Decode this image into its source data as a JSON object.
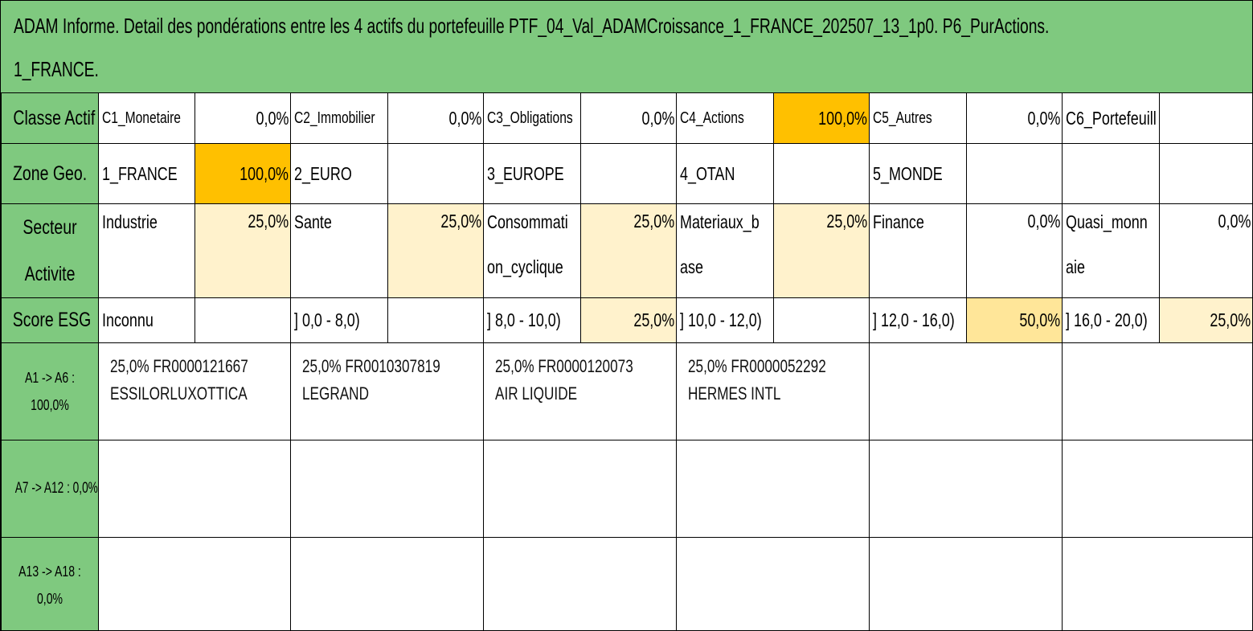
{
  "title": {
    "line1": "ADAM Informe. Detail des pondérations entre les 4 actifs du portefeuille PTF_04_Val_ADAMCroissance_1_FRANCE_202507_13_1p0. P6_PurActions.",
    "line2": "1_FRANCE."
  },
  "classe_actif": {
    "header": "Classe Actif",
    "items": [
      {
        "label": "C1_Monetaire",
        "value": "0,0%"
      },
      {
        "label": "C2_Immobilier",
        "value": "0,0%"
      },
      {
        "label": "C3_Obligations",
        "value": "0,0%"
      },
      {
        "label": "C4_Actions",
        "value": "100,0%"
      },
      {
        "label": "C5_Autres",
        "value": "0,0%"
      },
      {
        "label": "C6_Portefeuill",
        "value": ""
      }
    ]
  },
  "zone_geo": {
    "header": "Zone Geo.",
    "items": [
      {
        "label": "1_FRANCE",
        "value": "100,0%"
      },
      {
        "label": "2_EURO",
        "value": ""
      },
      {
        "label": "3_EUROPE",
        "value": ""
      },
      {
        "label": "4_OTAN",
        "value": ""
      },
      {
        "label": "5_MONDE",
        "value": ""
      },
      {
        "label": "",
        "value": ""
      }
    ]
  },
  "secteur": {
    "header_line1": "Secteur",
    "header_line2": "Activite",
    "items": [
      {
        "line1": "Industrie",
        "line2": "",
        "value": "25,0%"
      },
      {
        "line1": "Sante",
        "line2": "",
        "value": "25,0%"
      },
      {
        "line1": "Consommati",
        "line2": "on_cyclique",
        "value": "25,0%"
      },
      {
        "line1": "Materiaux_b",
        "line2": "ase",
        "value": "25,0%"
      },
      {
        "line1": "Finance",
        "line2": "",
        "value": "0,0%"
      },
      {
        "line1": "Quasi_monn",
        "line2": "aie",
        "value": "0,0%"
      }
    ]
  },
  "score_esg": {
    "header": "Score ESG",
    "items": [
      {
        "label": "Inconnu",
        "value": ""
      },
      {
        "label": "] 0,0 - 8,0)",
        "value": ""
      },
      {
        "label": "] 8,0 - 10,0)",
        "value": "25,0%"
      },
      {
        "label": "] 10,0 - 12,0)",
        "value": ""
      },
      {
        "label": "] 12,0 - 16,0)",
        "value": "50,0%"
      },
      {
        "label": "] 16,0 - 20,0)",
        "value": "25,0%"
      }
    ]
  },
  "assets": {
    "row1_header_line1": "A1 -> A6 :",
    "row1_header_line2": "100,0%",
    "row2_header": "A7 -> A12 : 0,0%",
    "row3_header_line1": "A13 -> A18 :",
    "row3_header_line2": "0,0%",
    "row1": [
      {
        "line1": "25,0% FR0000121667",
        "line2": "ESSILORLUXOTTICA"
      },
      {
        "line1": "25,0% FR0010307819",
        "line2": "LEGRAND"
      },
      {
        "line1": "25,0% FR0000120073",
        "line2": "AIR LIQUIDE"
      },
      {
        "line1": "25,0% FR0000052292",
        "line2": "HERMES INTL"
      }
    ]
  },
  "colors": {
    "header_green": "#7fc97f",
    "highlight_orange": "#ffc000",
    "highlight_light": "#fff2cc",
    "highlight_mid": "#ffe699"
  }
}
